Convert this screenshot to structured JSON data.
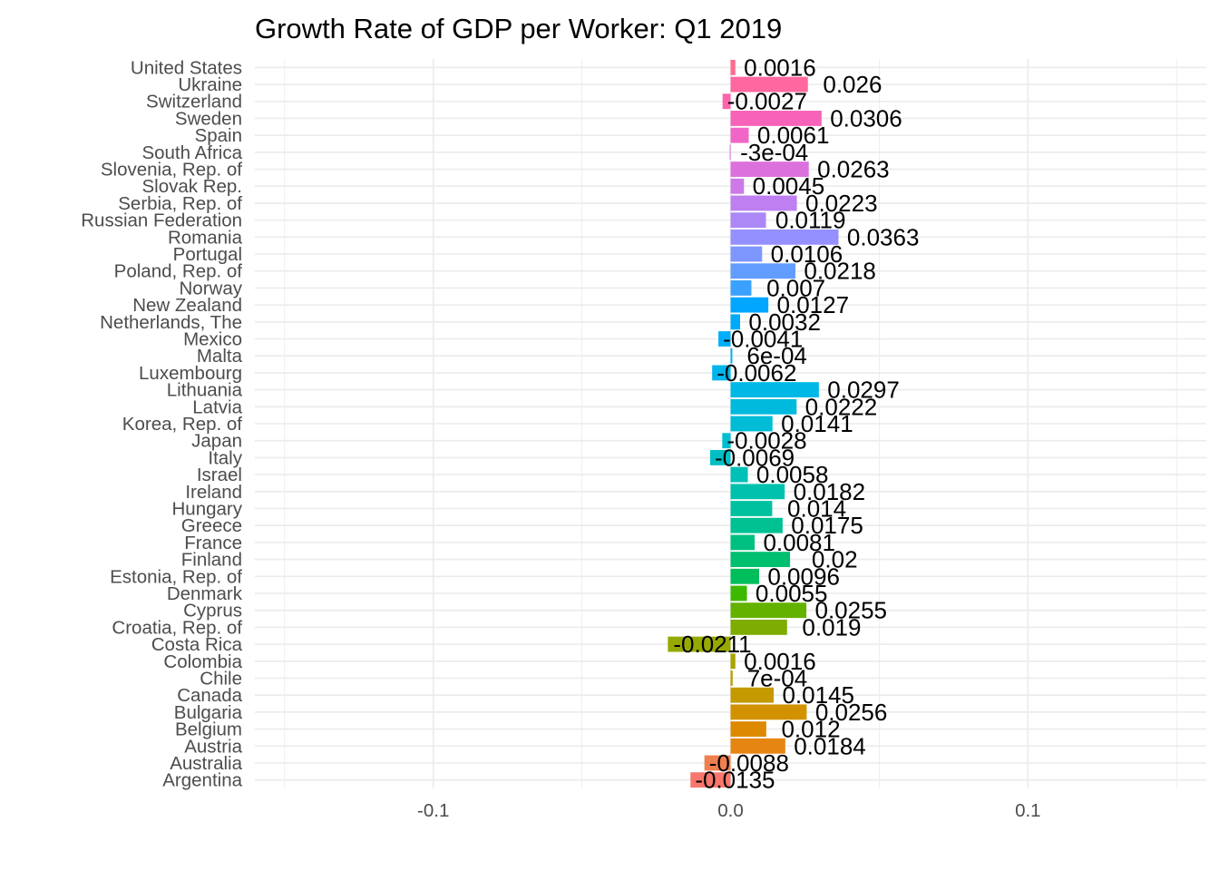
{
  "chart_data": {
    "type": "bar",
    "orientation": "horizontal",
    "title": "Growth Rate of GDP per Worker: Q1 2019",
    "xlabel": "",
    "ylabel": "",
    "xlim": [
      -0.16,
      0.16
    ],
    "x_ticks": [
      {
        "value": -0.1,
        "label": "-0.1"
      },
      {
        "value": 0.0,
        "label": "0.0"
      },
      {
        "value": 0.1,
        "label": "0.1"
      }
    ],
    "grid": true,
    "legend": "none",
    "categories": [
      "United States",
      "Ukraine",
      "Switzerland",
      "Sweden",
      "Spain",
      "South Africa",
      "Slovenia, Rep. of",
      "Slovak Rep.",
      "Serbia, Rep. of",
      "Russian Federation",
      "Romania",
      "Portugal",
      "Poland, Rep. of",
      "Norway",
      "New Zealand",
      "Netherlands, The",
      "Mexico",
      "Malta",
      "Luxembourg",
      "Lithuania",
      "Latvia",
      "Korea, Rep. of",
      "Japan",
      "Italy",
      "Israel",
      "Ireland",
      "Hungary",
      "Greece",
      "France",
      "Finland",
      "Estonia, Rep. of",
      "Denmark",
      "Cyprus",
      "Croatia, Rep. of",
      "Costa Rica",
      "Colombia",
      "Chile",
      "Canada",
      "Bulgaria",
      "Belgium",
      "Austria",
      "Australia",
      "Argentina"
    ],
    "values": [
      0.0016,
      0.026,
      -0.0027,
      0.0306,
      0.0061,
      -0.0003,
      0.0263,
      0.0045,
      0.0223,
      0.0119,
      0.0363,
      0.0106,
      0.0218,
      0.007,
      0.0127,
      0.0032,
      -0.0041,
      0.0006,
      -0.0062,
      0.0297,
      0.0222,
      0.0141,
      -0.0028,
      -0.0069,
      0.0058,
      0.0182,
      0.014,
      0.0175,
      0.0081,
      0.02,
      0.0096,
      0.0055,
      0.0255,
      0.019,
      -0.0211,
      0.0016,
      0.0007,
      0.0145,
      0.0256,
      0.012,
      0.0184,
      -0.0088,
      -0.0135
    ],
    "value_labels": [
      "0.0016",
      "0.026",
      "-0.0027",
      "0.0306",
      "0.0061",
      "-3e-04",
      "0.0263",
      "0.0045",
      "0.0223",
      "0.0119",
      "0.0363",
      "0.0106",
      "0.0218",
      "0.007",
      "0.0127",
      "0.0032",
      "-0.0041",
      "6e-04",
      "-0.0062",
      "0.0297",
      "0.0222",
      "0.0141",
      "-0.0028",
      "-0.0069",
      "0.0058",
      "0.0182",
      "0.014",
      "0.0175",
      "0.0081",
      "0.02",
      "0.0096",
      "0.0055",
      "0.0255",
      "0.019",
      "-0.0211",
      "0.0016",
      "7e-04",
      "0.0145",
      "0.0256",
      "0.012",
      "0.0184",
      "-0.0088",
      "-0.0135"
    ],
    "colors": [
      "#FF6C91",
      "#FF689F",
      "#FC65AC",
      "#F763B9",
      "#F066C6",
      "#E76BD3",
      "#DC71DE",
      "#CE79E8",
      "#BE80F0",
      "#AC88F6",
      "#9590FF",
      "#7D97FF",
      "#619CFF",
      "#3BA1FF",
      "#00A6FF",
      "#00AAF8",
      "#00AEFA",
      "#00B2F3",
      "#00B5EC",
      "#00B8E5",
      "#00BADE",
      "#00BCD7",
      "#00BDD0",
      "#00BFC4",
      "#00C0B8",
      "#00C1AC",
      "#00C19F",
      "#00C191",
      "#00C081",
      "#00BF6F",
      "#00BE5B",
      "#3DB800",
      "#64B200",
      "#7EAC00",
      "#96A900",
      "#A8A400",
      "#B89E00",
      "#C59900",
      "#D29200",
      "#DD8A00",
      "#E68612",
      "#F07F4E",
      "#F8766D"
    ]
  }
}
